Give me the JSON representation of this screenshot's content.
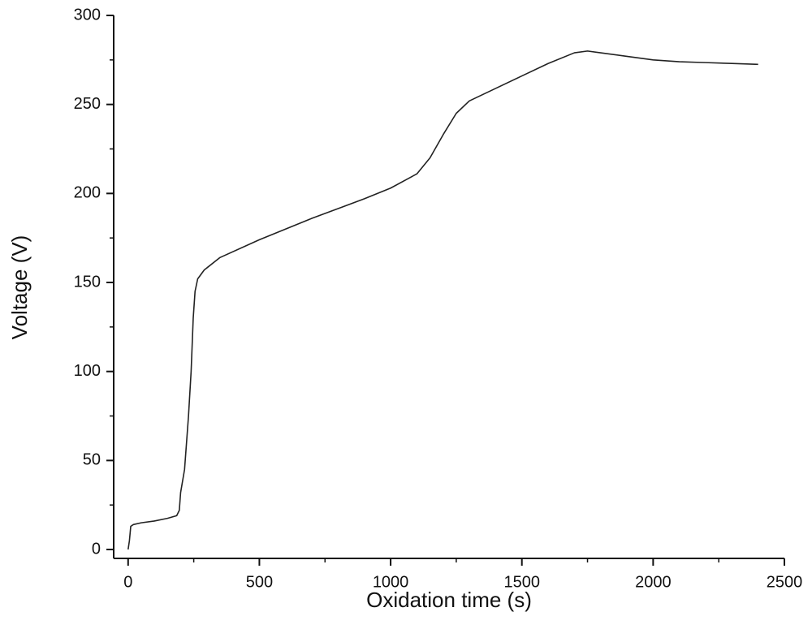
{
  "chart_data": {
    "type": "line",
    "x_label": "Oxidation time (s)",
    "y_label": "Voltage (V)",
    "xlim": [
      -55,
      2500
    ],
    "ylim": [
      -5,
      300
    ],
    "xticks": [
      0,
      500,
      1000,
      1500,
      2000,
      2500
    ],
    "yticks": [
      0,
      50,
      100,
      150,
      200,
      250,
      300
    ],
    "minor_xticks": [
      250,
      750,
      1250,
      1750,
      2250
    ],
    "minor_yticks": [
      25,
      75,
      125,
      175,
      225,
      275
    ],
    "grid": false,
    "series": [
      {
        "color": "#222222",
        "x": [
          0,
          5,
          10,
          20,
          50,
          100,
          150,
          185,
          195,
          200,
          215,
          230,
          240,
          248,
          255,
          265,
          290,
          350,
          500,
          700,
          900,
          1000,
          1100,
          1150,
          1200,
          1250,
          1300,
          1400,
          1500,
          1600,
          1700,
          1750,
          1800,
          1900,
          2000,
          2100,
          2200,
          2300,
          2400
        ],
        "values": [
          0,
          5,
          13,
          14,
          15,
          16,
          17.5,
          19,
          22,
          32,
          45,
          75,
          100,
          130,
          145,
          152,
          157,
          164,
          174,
          186,
          197,
          203,
          211,
          220,
          233,
          245,
          252,
          259,
          266,
          273,
          279,
          280,
          279,
          277,
          275,
          274,
          273.5,
          273,
          272.5
        ]
      }
    ]
  }
}
